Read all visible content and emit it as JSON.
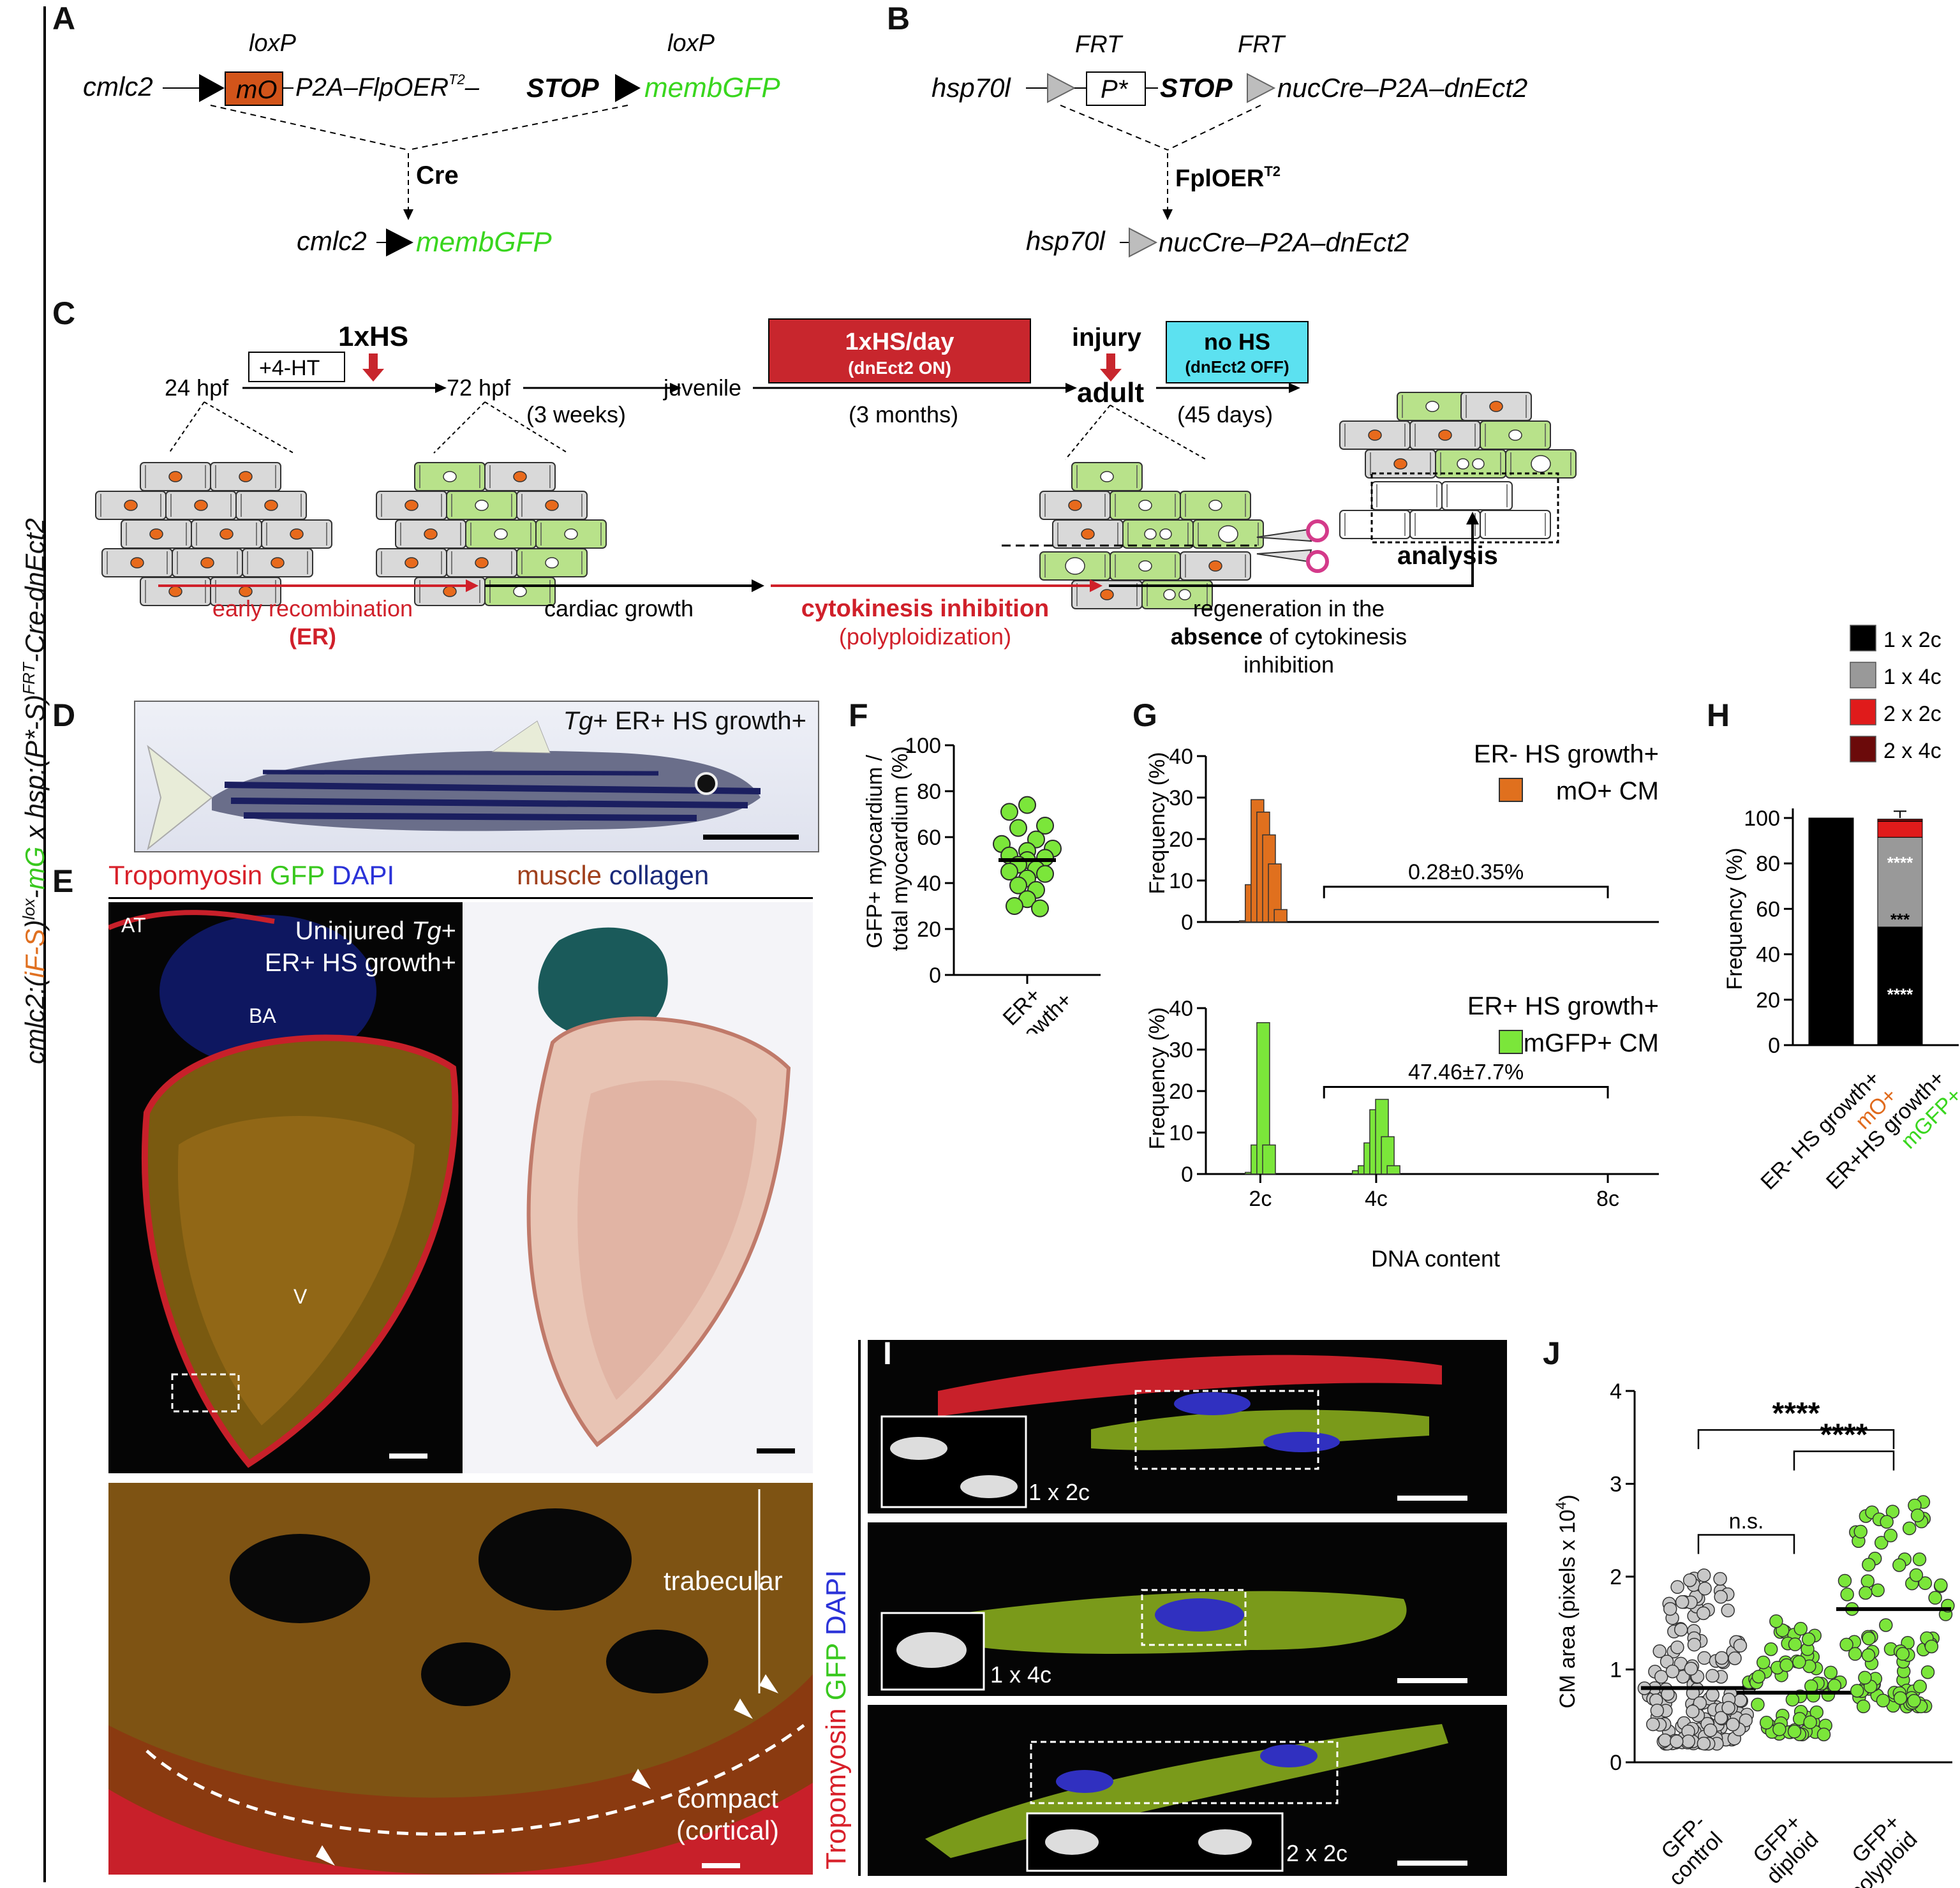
{
  "side_label": {
    "p1": "cmlc2:(",
    "p2": "iF-S",
    "p3": ")",
    "p4": "lox",
    "p5": "-",
    "p6": "mG",
    "p7": " x hsp:(P*-S)",
    "p8": "FRT",
    "p9": "-Cre-dnEct2"
  },
  "panel_letters": [
    "A",
    "B",
    "C",
    "D",
    "E",
    "F",
    "G",
    "H",
    "I",
    "J"
  ],
  "panelA": {
    "promoter": "cmlc2",
    "loxp1": "loxP",
    "loxp2": "loxP",
    "mo": "mO",
    "p2a": "P2A",
    "flp": "FlpOER",
    "t2": "T2",
    "stop": "STOP",
    "gene": "membGFP",
    "enzyme": "Cre",
    "result_promoter": "cmlc2",
    "result_gene": "membGFP",
    "colors": {
      "mo_box": "#d2541a",
      "gfp": "#39d61e"
    }
  },
  "panelB": {
    "promoter": "hsp70l",
    "frt1": "FRT",
    "frt2": "FRT",
    "pstar": "P*",
    "stop": "STOP",
    "cassette": "nucCre–P2A–dnEct2",
    "enzyme": "FplOER",
    "t2": "T2",
    "result_promoter": "hsp70l",
    "result_cassette": "nucCre–P2A–dnEct2"
  },
  "panelC": {
    "tp_24": "24 hpf",
    "tp_72": "72 hpf",
    "tp_juv": "juvenile",
    "tp_adult": "adult",
    "hs1": "1xHS",
    "hta": "+4-HT",
    "weeks": "(3 weeks)",
    "months": "(3 months)",
    "days": "(45 days)",
    "hsday": "1xHS/day",
    "hsday_sub": "(dnEct2 ON)",
    "injury": "injury",
    "nohs": "no HS",
    "nohs_sub": "(dnEct2 OFF)",
    "analysis": "analysis",
    "phase1_a": "early recombination",
    "phase1_b": "(ER)",
    "phase2": "cardiac growth",
    "phase3_a": "cytokinesis inhibition",
    "phase3_b": "(polyploidization)",
    "phase4_a": "regeneration in the",
    "phase4_b1": "absence",
    "phase4_b2": " of cytokinesis",
    "phase4_c": "inhibition",
    "colors": {
      "red_box": "#c8262d",
      "cyan_box": "#5ce1f0",
      "red": "#d0202a",
      "green_cell": "#b8e28a",
      "grey_cell": "#d9d9d9",
      "nucleus": "#e86a1c"
    }
  },
  "panelD": {
    "label_tg": "Tg",
    "label_rest": "+ ER+ HS growth+"
  },
  "panelE": {
    "stain_a": "Tropomyosin",
    "stain_b": "GFP",
    "stain_c": "DAPI",
    "stain_d": "muscle",
    "stain_e": "collagen",
    "img_l1a": "Uninjured ",
    "img_l1b": "Tg",
    "img_l1c": "+",
    "img_l2": "ER+ HS growth+",
    "at": "AT",
    "ba": "BA",
    "v": "V",
    "trabecular": "trabecular",
    "compact1": "compact",
    "compact2": "(cortical)"
  },
  "panelF": {
    "ylabel1": "GFP+ myocardium /",
    "ylabel2": "total myocardium (%)",
    "xlabel1": "ER+",
    "xlabel2": "HS growth+",
    "yticks": [
      "0",
      "20",
      "40",
      "60",
      "80",
      "100"
    ],
    "chart_data": {
      "type": "scatter",
      "ylim": [
        0,
        100
      ],
      "mean": 50,
      "values": [
        74,
        71,
        65,
        64,
        59,
        57,
        55,
        54,
        52,
        51,
        50,
        48,
        46,
        45,
        44,
        42,
        39,
        37,
        33,
        30,
        29
      ],
      "category": "ER+ HS growth+"
    }
  },
  "panelG": {
    "ylabel": "Frequency (%)",
    "xlabel": "DNA content",
    "xticks": [
      "2c",
      "4c",
      "8c"
    ],
    "yticks": [
      "0",
      "10",
      "20",
      "30",
      "40"
    ],
    "chart_data": [
      {
        "type": "bar",
        "title": "ER- HS growth+",
        "legend": "mO+ CM",
        "color": "#e0701e",
        "bins": [
          "1.75c",
          "1.85c",
          "1.95c",
          "2.05c",
          "2.15c",
          "2.25c",
          "2.35c"
        ],
        "values": [
          0.3,
          9,
          29.5,
          26.5,
          21,
          14,
          3
        ],
        "bracket": "0.28±0.35%",
        "ylim": [
          0,
          40
        ]
      },
      {
        "type": "bar",
        "title": "ER+ HS growth+",
        "legend": "mGFP+ CM",
        "color": "#7be63a",
        "bins": [
          "1.85c",
          "1.95c",
          "2.05c",
          "2.15c",
          "3.7c",
          "3.8c",
          "3.9c",
          "4.0c",
          "4.1c",
          "4.2c",
          "4.3c"
        ],
        "values": [
          0.4,
          7,
          36.5,
          7,
          0.8,
          2,
          7.5,
          15.5,
          18,
          9,
          2
        ],
        "bracket": "47.46±7.7%",
        "ylim": [
          0,
          40
        ]
      }
    ]
  },
  "panelH": {
    "ylabel": "Frequency (%)",
    "yticks": [
      "0",
      "20",
      "40",
      "60",
      "80",
      "100"
    ],
    "legend": [
      "1 x 2c",
      "1 x 4c",
      "2 x 2c",
      "2 x 4c"
    ],
    "colors": [
      "#000000",
      "#999999",
      "#e01b1b",
      "#6b0a0a"
    ],
    "x1a": "ER- HS growth+",
    "x1b": "mO+",
    "x2a": "ER+HS growth+",
    "x2b": "mGFP+",
    "star4": "****",
    "star3": "***",
    "chart_data": {
      "type": "bar",
      "stacked": true,
      "categories": [
        "ER- HS growth+ mO+",
        "ER+HS growth+ mGFP+"
      ],
      "series": [
        {
          "name": "1 x 2c",
          "values": [
            99.5,
            52
          ]
        },
        {
          "name": "1 x 4c",
          "values": [
            0.3,
            39.5
          ]
        },
        {
          "name": "2 x 2c",
          "values": [
            0.2,
            7
          ]
        },
        {
          "name": "2 x 4c",
          "values": [
            0,
            1
          ]
        }
      ],
      "ylim": [
        0,
        100
      ]
    }
  },
  "panelI": {
    "stain_a": "Tropomyosin",
    "stain_b": "GFP",
    "stain_c": "DAPI",
    "l1": "1 x 2c",
    "l2": "1 x 4c",
    "l3": "2 x 2c"
  },
  "panelJ": {
    "ylabel": "CM area (pixels x 10",
    "ylabel_sup": "4",
    "ylabel_end": ")",
    "yticks": [
      "0",
      "1",
      "2",
      "3",
      "4"
    ],
    "x1a": "GFP-",
    "x1b": "control",
    "x2a": "GFP+",
    "x2b": "diploid",
    "x3a": "GFP+",
    "x3b": "polyploid",
    "sig1": "****",
    "sig2": "****",
    "ns": "n.s.",
    "chart_data": {
      "type": "scatter",
      "ylim": [
        0,
        4
      ],
      "groups": [
        {
          "name": "GFP- control",
          "median": 0.8,
          "color": "#c8c8c8"
        },
        {
          "name": "GFP+ diploid",
          "median": 0.75,
          "color": "#7be63a"
        },
        {
          "name": "GFP+ polyploid",
          "median": 1.65,
          "color": "#7be63a"
        }
      ]
    }
  }
}
